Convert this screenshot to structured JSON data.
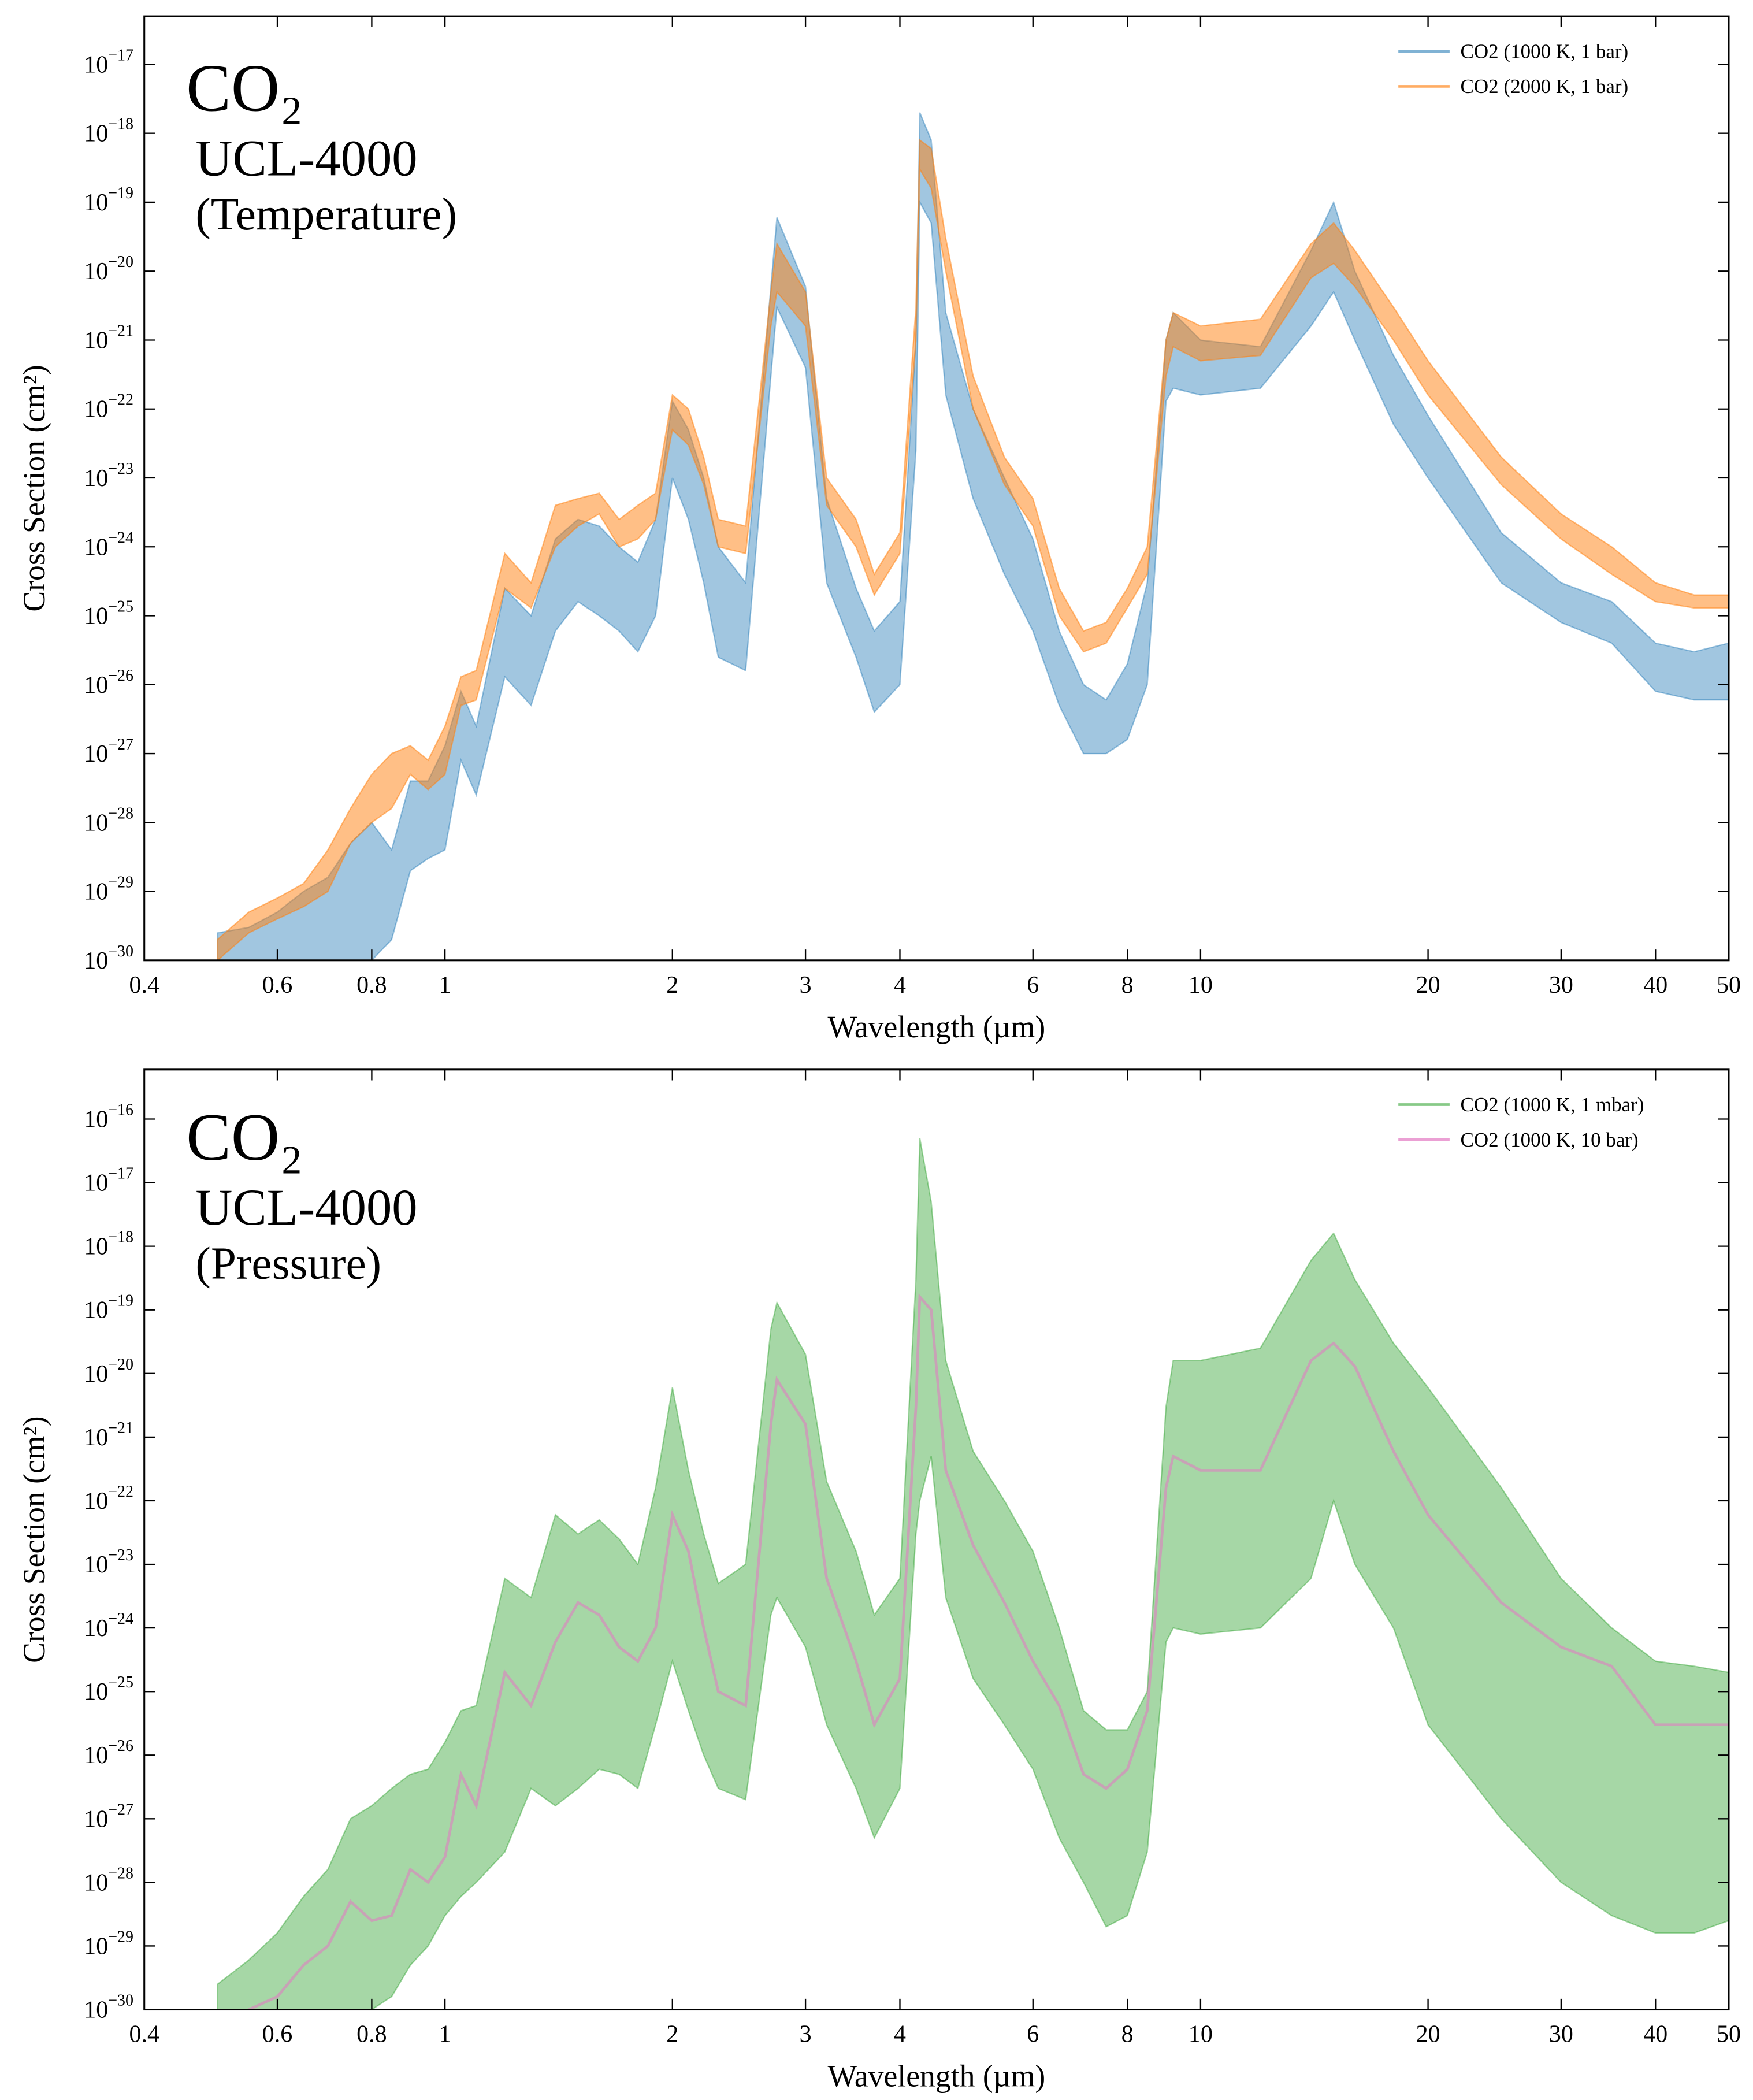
{
  "chart_data": [
    {
      "type": "area",
      "xscale": "log",
      "yscale": "log",
      "legend": "upper right",
      "annotations": [
        "CO₂",
        "UCL-4000",
        "(Temperature)"
      ],
      "xlabel": "Wavelength (µm)",
      "ylabel": "Cross Section (cm²)",
      "xlim": [
        0.4,
        50
      ],
      "ylim": [
        1e-30,
        5e-17
      ],
      "xticks": [
        0.4,
        0.6,
        0.8,
        1,
        2,
        3,
        4,
        6,
        8,
        10,
        20,
        30,
        40,
        50
      ],
      "yticks": [
        {
          "value": 1e-30,
          "label": "10−30"
        },
        {
          "value": 1e-29,
          "label": "10−29"
        },
        {
          "value": 1e-28,
          "label": "10−28"
        },
        {
          "value": 1e-27,
          "label": "10−27"
        },
        {
          "value": 1e-26,
          "label": "10−26"
        },
        {
          "value": 1e-25,
          "label": "10−25"
        },
        {
          "value": 1e-24,
          "label": "10−24"
        },
        {
          "value": 1e-23,
          "label": "10−23"
        },
        {
          "value": 1e-22,
          "label": "10−22"
        },
        {
          "value": 1e-21,
          "label": "10−21"
        },
        {
          "value": 1e-20,
          "label": "10−20"
        },
        {
          "value": 1e-19,
          "label": "10−19"
        },
        {
          "value": 1e-18,
          "label": "10−18"
        },
        {
          "value": 1e-17,
          "label": "10−17"
        }
      ],
      "x": [
        0.5,
        0.55,
        0.6,
        0.65,
        0.7,
        0.75,
        0.8,
        0.85,
        0.9,
        0.95,
        1.0,
        1.05,
        1.1,
        1.2,
        1.3,
        1.4,
        1.5,
        1.6,
        1.7,
        1.8,
        1.9,
        2.0,
        2.1,
        2.2,
        2.3,
        2.5,
        2.7,
        2.75,
        3.0,
        3.2,
        3.5,
        3.7,
        4.0,
        4.2,
        4.25,
        4.4,
        4.6,
        5.0,
        5.5,
        6.0,
        6.5,
        7.0,
        7.5,
        8.0,
        8.5,
        9.0,
        9.2,
        10,
        12,
        14,
        15,
        16,
        18,
        20,
        25,
        30,
        35,
        40,
        45,
        50
      ],
      "series": [
        {
          "name": "CO2 (1000 K, 1 bar)",
          "color": "#1f77b4",
          "opacity": 0.42,
          "style": "band",
          "values": [
            2.5e-30,
            3e-30,
            5e-30,
            1e-29,
            1.6e-29,
            5e-29,
            1e-28,
            4e-29,
            4e-28,
            4e-28,
            1.3e-27,
            8e-27,
            2.5e-27,
            2.5e-25,
            1e-25,
            1.3e-24,
            2.5e-24,
            2e-24,
            1e-24,
            6e-25,
            2.5e-24,
            1.3e-22,
            5e-23,
            1e-23,
            1e-24,
            3e-25,
            6e-21,
            6e-20,
            6e-21,
            5e-24,
            2.5e-25,
            6e-26,
            1.6e-25,
            1e-21,
            2e-18,
            8e-19,
            2.5e-21,
            1e-22,
            1e-23,
            1.3e-24,
            6e-26,
            1e-26,
            6e-27,
            2e-26,
            3e-25,
            1e-21,
            2.5e-21,
            1e-21,
            8e-22,
            2e-20,
            1e-19,
            1e-20,
            6e-22,
            8e-23,
            1.6e-24,
            3e-25,
            1.6e-25,
            4e-26,
            3e-26,
            4e-26
          ],
          "lower": [
            1e-31,
            1e-31,
            1e-31,
            1e-31,
            1e-31,
            1e-31,
            1e-30,
            2e-30,
            2e-29,
            3e-29,
            4e-29,
            8e-28,
            2.5e-28,
            1.3e-26,
            5e-27,
            6e-26,
            1.6e-25,
            1e-25,
            6e-26,
            3e-26,
            1e-25,
            1e-23,
            2.5e-24,
            3e-25,
            2.5e-26,
            1.6e-26,
            3e-22,
            3e-21,
            4e-22,
            3e-25,
            2.5e-26,
            4e-27,
            1e-26,
            2.5e-23,
            1e-19,
            5e-20,
            1.6e-22,
            5e-24,
            4e-25,
            6e-26,
            5e-27,
            1e-27,
            1e-27,
            1.6e-27,
            1e-26,
            1.3e-22,
            2e-22,
            1.6e-22,
            2e-22,
            1.6e-21,
            5e-21,
            1e-21,
            6e-23,
            1e-23,
            3e-25,
            8e-26,
            4e-26,
            8e-27,
            6e-27,
            6e-27
          ]
        },
        {
          "name": "CO2 (2000 K, 1 bar)",
          "color": "#ff7f0e",
          "opacity": 0.5,
          "style": "band",
          "values": [
            2e-30,
            5e-30,
            8e-30,
            1.3e-29,
            4e-29,
            1.6e-28,
            5e-28,
            1e-27,
            1.3e-27,
            8e-28,
            2.5e-27,
            1.3e-26,
            1.6e-26,
            8e-25,
            3e-25,
            4e-24,
            5e-24,
            6e-24,
            2.5e-24,
            4e-24,
            6e-24,
            1.6e-22,
            1e-22,
            2e-23,
            2.5e-24,
            2e-24,
            5e-21,
            2.5e-20,
            5e-21,
            1e-23,
            2.5e-24,
            4e-25,
            1.6e-24,
            3e-21,
            8e-19,
            6e-19,
            3e-20,
            3e-22,
            2e-23,
            5e-24,
            2.5e-25,
            6e-26,
            8e-26,
            2.5e-25,
            1e-24,
            1e-21,
            2.5e-21,
            1.6e-21,
            2e-21,
            2.5e-20,
            5e-20,
            2e-20,
            3e-21,
            5e-22,
            2e-23,
            3e-24,
            1e-24,
            3e-25,
            2e-25,
            2e-25
          ],
          "lower": [
            1e-30,
            2.5e-30,
            4e-30,
            6e-30,
            1e-29,
            5e-29,
            1e-28,
            1.6e-28,
            5e-28,
            3e-28,
            5e-28,
            5e-27,
            6e-27,
            2.5e-25,
            1.3e-25,
            1e-24,
            2e-24,
            3e-24,
            1e-24,
            1.3e-24,
            2.5e-24,
            5e-23,
            3e-23,
            8e-24,
            1e-24,
            8e-25,
            1.6e-21,
            5e-21,
            1.6e-21,
            4e-24,
            1e-24,
            2e-25,
            8e-25,
            1e-21,
            3e-19,
            1.6e-19,
            1e-20,
            1e-22,
            8e-24,
            2e-24,
            1e-25,
            3e-26,
            4e-26,
            1.3e-25,
            4e-25,
            3e-22,
            8e-22,
            5e-22,
            6e-22,
            8e-21,
            1.3e-20,
            6e-21,
            1e-21,
            1.6e-22,
            8e-24,
            1.3e-24,
            4e-25,
            1.6e-25,
            1.3e-25,
            1.3e-25
          ]
        }
      ]
    },
    {
      "type": "area",
      "xscale": "log",
      "yscale": "log",
      "legend": "upper right",
      "annotations": [
        "CO₂",
        "UCL-4000",
        "(Pressure)"
      ],
      "xlabel": "Wavelength (µm)",
      "ylabel": "Cross Section (cm²)",
      "xlim": [
        0.4,
        50
      ],
      "ylim": [
        1e-30,
        6e-16
      ],
      "xticks": [
        0.4,
        0.6,
        0.8,
        1,
        2,
        3,
        4,
        6,
        8,
        10,
        20,
        30,
        40,
        50
      ],
      "yticks": [
        {
          "value": 1e-30,
          "label": "10−30"
        },
        {
          "value": 1e-29,
          "label": "10−29"
        },
        {
          "value": 1e-28,
          "label": "10−28"
        },
        {
          "value": 1e-27,
          "label": "10−27"
        },
        {
          "value": 1e-26,
          "label": "10−26"
        },
        {
          "value": 1e-25,
          "label": "10−25"
        },
        {
          "value": 1e-24,
          "label": "10−24"
        },
        {
          "value": 1e-23,
          "label": "10−23"
        },
        {
          "value": 1e-22,
          "label": "10−22"
        },
        {
          "value": 1e-21,
          "label": "10−21"
        },
        {
          "value": 1e-20,
          "label": "10−20"
        },
        {
          "value": 1e-19,
          "label": "10−19"
        },
        {
          "value": 1e-18,
          "label": "10−18"
        },
        {
          "value": 1e-17,
          "label": "10−17"
        },
        {
          "value": 1e-16,
          "label": "10−16"
        }
      ],
      "x": [
        0.5,
        0.55,
        0.6,
        0.65,
        0.7,
        0.75,
        0.8,
        0.85,
        0.9,
        0.95,
        1.0,
        1.05,
        1.1,
        1.2,
        1.3,
        1.4,
        1.5,
        1.6,
        1.7,
        1.8,
        1.9,
        2.0,
        2.1,
        2.2,
        2.3,
        2.5,
        2.7,
        2.75,
        3.0,
        3.2,
        3.5,
        3.7,
        4.0,
        4.2,
        4.25,
        4.4,
        4.6,
        5.0,
        5.5,
        6.0,
        6.5,
        7.0,
        7.5,
        8.0,
        8.5,
        9.0,
        9.2,
        10,
        12,
        14,
        15,
        16,
        18,
        20,
        25,
        30,
        35,
        40,
        45,
        50
      ],
      "series": [
        {
          "name": "CO2 (1000 K, 1 mbar)",
          "color": "#2ca02c",
          "opacity": 0.42,
          "style": "band",
          "values": [
            2.5e-30,
            6e-30,
            1.6e-29,
            6e-29,
            1.6e-28,
            1e-27,
            1.6e-27,
            3e-27,
            5e-27,
            6e-27,
            1.6e-26,
            5e-26,
            6e-26,
            6e-24,
            3e-24,
            6e-23,
            3e-23,
            5e-23,
            2.5e-23,
            1e-23,
            1.6e-22,
            6e-21,
            3e-22,
            3e-23,
            5e-24,
            1e-23,
            5e-20,
            1.3e-19,
            2e-20,
            2e-22,
            1.6e-23,
            1.6e-24,
            6e-24,
            3e-19,
            5e-17,
            5e-18,
            1.6e-20,
            6e-22,
            1e-22,
            1.6e-23,
            1e-24,
            5e-26,
            2.5e-26,
            2.5e-26,
            1e-25,
            3e-21,
            1.6e-20,
            1.6e-20,
            2.5e-20,
            6e-19,
            1.6e-18,
            3e-19,
            3e-20,
            6e-21,
            1.6e-22,
            6e-24,
            1e-24,
            3e-25,
            2.5e-25,
            2e-25
          ],
          "lower": [
            1e-31,
            1e-31,
            1e-31,
            1e-31,
            3e-31,
            5e-31,
            1e-30,
            1.6e-30,
            5e-30,
            1e-29,
            3e-29,
            6e-29,
            1e-28,
            3e-28,
            3e-27,
            1.6e-27,
            3e-27,
            6e-27,
            5e-27,
            3e-27,
            3e-26,
            3e-25,
            5e-26,
            1e-26,
            3e-27,
            2e-27,
            1.6e-24,
            3e-24,
            5e-25,
            3e-26,
            3e-27,
            5e-28,
            3e-27,
            3e-23,
            1e-22,
            5e-22,
            3e-24,
            1.6e-25,
            3e-26,
            6e-27,
            5e-28,
            1e-28,
            2e-29,
            3e-29,
            3e-28,
            6e-25,
            1e-24,
            8e-25,
            1e-24,
            6e-24,
            1e-22,
            1e-23,
            1e-24,
            3e-26,
            1e-27,
            1e-28,
            3e-29,
            1.6e-29,
            1.6e-29,
            2.5e-29
          ]
        },
        {
          "name": "CO2 (1000 K, 10 bar)",
          "color": "#e377c2",
          "opacity": 0.55,
          "style": "line",
          "values": [
            3e-31,
            1e-30,
            1.6e-30,
            5e-30,
            1e-29,
            5e-29,
            2.5e-29,
            3e-29,
            1.6e-28,
            1e-28,
            2.5e-28,
            5e-27,
            1.6e-27,
            2e-25,
            6e-26,
            6e-25,
            2.5e-24,
            1.6e-24,
            5e-25,
            3e-25,
            1e-24,
            6e-23,
            1.6e-23,
            1e-24,
            1e-25,
            6e-26,
            1.6e-21,
            8e-21,
            1.6e-21,
            6e-24,
            3e-25,
            3e-26,
            1.6e-25,
            3e-21,
            1.6e-19,
            1e-19,
            3e-22,
            2e-23,
            2.5e-24,
            3e-25,
            6e-26,
            5e-27,
            3e-27,
            6e-27,
            5e-26,
            1.6e-22,
            5e-22,
            3e-22,
            3e-22,
            1.6e-20,
            3e-20,
            1.3e-20,
            6e-22,
            6e-23,
            2.5e-24,
            5e-25,
            2.5e-25,
            3e-26,
            3e-26,
            3e-26
          ]
        }
      ]
    }
  ]
}
